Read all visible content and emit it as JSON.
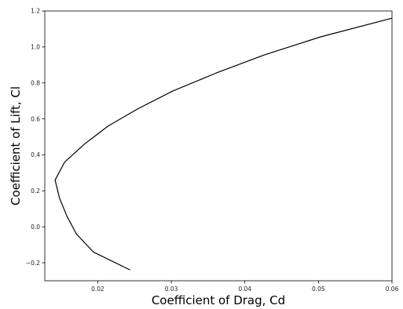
{
  "chart_data": {
    "type": "line",
    "title": "",
    "xlabel": "Coefficient of Drag, Cd",
    "ylabel": "Coefficient of Lift, Cl",
    "xlim": [
      0.0128,
      0.06
    ],
    "ylim": [
      -0.3,
      1.2
    ],
    "xticks": [
      0.02,
      0.03,
      0.04,
      0.05,
      0.06
    ],
    "xtick_labels": [
      "0.02",
      "0.03",
      "0.04",
      "0.05",
      "0.06"
    ],
    "yticks": [
      -0.2,
      0.0,
      0.2,
      0.4,
      0.6,
      0.8,
      1.0,
      1.2
    ],
    "ytick_labels": [
      "−0.2",
      "0.0",
      "0.2",
      "0.4",
      "0.6",
      "0.8",
      "1.0",
      "1.2"
    ],
    "grid": false,
    "legend": "none",
    "line_color": "#000000",
    "series": [
      {
        "x": [
          0.0244,
          0.0194,
          0.0171,
          0.0158,
          0.0148,
          0.0142,
          0.0155,
          0.0182,
          0.0214,
          0.0254,
          0.0302,
          0.0361,
          0.0426,
          0.0502,
          0.06
        ],
        "y": [
          -0.24,
          -0.14,
          -0.04,
          0.06,
          0.16,
          0.26,
          0.36,
          0.46,
          0.56,
          0.655,
          0.755,
          0.855,
          0.955,
          1.055,
          1.16
        ]
      }
    ]
  }
}
